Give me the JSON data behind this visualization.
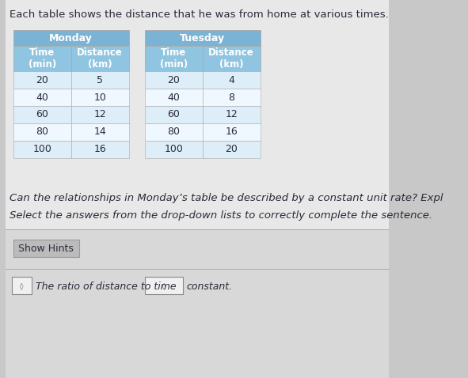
{
  "title_text": "Each table shows the distance that he was from home at various times.",
  "monday_title": "Monday",
  "tuesday_title": "Tuesday",
  "col_headers": [
    "Time\n(min)",
    "Distance\n(km)"
  ],
  "monday_data": [
    [
      20,
      5
    ],
    [
      40,
      10
    ],
    [
      60,
      12
    ],
    [
      80,
      14
    ],
    [
      100,
      16
    ]
  ],
  "tuesday_data": [
    [
      20,
      4
    ],
    [
      40,
      8
    ],
    [
      60,
      12
    ],
    [
      80,
      16
    ],
    [
      100,
      20
    ]
  ],
  "question_text": "Can the relationships in Monday’s table be described by a constant unit rate? Expl",
  "select_text": "Select the answers from the drop-down lists to correctly complete the sentence.",
  "hint_button_text": "Show Hints",
  "sentence_text": "The ratio of distance to time",
  "sentence_end": "constant.",
  "table_header_bg": "#7ab3d4",
  "table_subheader_bg": "#8fc5e0",
  "table_row_light_bg": "#ddeef8",
  "table_row_white_bg": "#f0f8ff",
  "table_border_color": "#aaaaaa",
  "bg_color": "#c8c8c8",
  "main_panel_bg": "#e8e8e8",
  "bottom_panel_bg": "#d8d8d8",
  "text_color": "#2a2a3a",
  "hint_button_bg": "#bbbbbb",
  "hint_button_border": "#999999",
  "dropdown_bg": "#f0f0f0",
  "dropdown_border": "#888888",
  "separator_color": "#aaaaaa"
}
